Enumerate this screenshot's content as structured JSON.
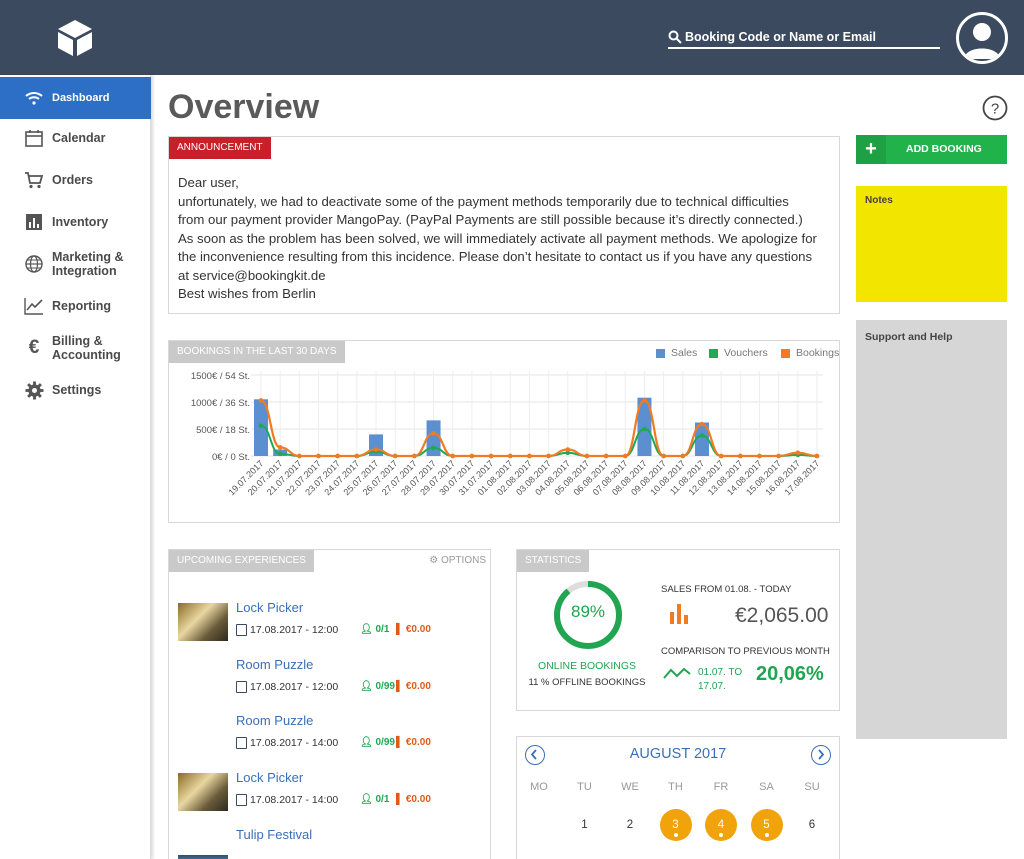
{
  "header": {
    "search_placeholder": "Booking Code or Name or Email"
  },
  "sidebar": {
    "items": [
      {
        "label": "Dashboard",
        "icon": "wifi-icon",
        "active": true
      },
      {
        "label": "Calendar",
        "icon": "calendar-icon"
      },
      {
        "label": "Orders",
        "icon": "cart-icon"
      },
      {
        "label": "Inventory",
        "icon": "bar-chart-icon"
      },
      {
        "label": "Marketing &",
        "label2": "Integration",
        "icon": "globe-icon"
      },
      {
        "label": "Reporting",
        "icon": "line-chart-icon"
      },
      {
        "label": "Billing &",
        "label2": "Accounting",
        "icon": "euro-icon"
      },
      {
        "label": "Settings",
        "icon": "gear-icon"
      }
    ]
  },
  "main": {
    "title": "Overview",
    "announcement": {
      "tag": "ANNOUNCEMENT",
      "lines": [
        "Dear user,",
        "unfortunately, we had to deactivate some of the payment methods temporarily due to technical difficulties",
        "from our payment provider MangoPay. (PayPal Payments are still possible because it’s directly connected.)",
        "As soon as the problem has been solved, we will immediately activate all payment methods. We apologize for",
        "the inconvenience resulting from this incidence. Please don’t hesitate to contact us if you have any questions",
        "at service@bookingkit.de",
        "Best wishes from Berlin"
      ]
    },
    "upcoming": {
      "tag": "UPCOMING EXPERIENCES",
      "options_label": "⚙ OPTIONS",
      "items": [
        {
          "name": "Lock Picker",
          "date": "17.08.2017 - 12:00",
          "persons": "0/1",
          "sales": "€0.00",
          "thumb": "lock"
        },
        {
          "name": "Room Puzzle",
          "date": "17.08.2017 - 12:00",
          "persons": "0/99",
          "sales": "€0.00",
          "thumb": ""
        },
        {
          "name": "Room Puzzle",
          "date": "17.08.2017 - 14:00",
          "persons": "0/99",
          "sales": "€0.00",
          "thumb": ""
        },
        {
          "name": "Lock Picker",
          "date": "17.08.2017 - 14:00",
          "persons": "0/1",
          "sales": "€0.00",
          "thumb": "lock"
        },
        {
          "name": "Tulip Festival",
          "date": "",
          "persons": "",
          "sales": "",
          "thumb": "tulip"
        }
      ]
    },
    "statistics": {
      "tag": "STATISTICS",
      "online_percent": 89,
      "online_percent_label": "89%",
      "online_label": "ONLINE BOOKINGS",
      "offline_label": "11 % OFFLINE BOOKINGS",
      "sales_label": "SALES FROM 01.08. - TODAY",
      "sales_value": "€2,065.00",
      "comparison_label": "COMPARISON TO PREVIOUS MONTH",
      "comparison_range_1": "01.07. TO",
      "comparison_range_2": "17.07.",
      "comparison_value": "20,06%"
    },
    "calendar": {
      "month": "AUGUST 2017",
      "weekdays": [
        "MO",
        "TU",
        "WE",
        "TH",
        "FR",
        "SA",
        "SU"
      ],
      "days": [
        {
          "d": "1",
          "col": 1,
          "busy": false
        },
        {
          "d": "2",
          "col": 2,
          "busy": false
        },
        {
          "d": "3",
          "col": 3,
          "busy": true
        },
        {
          "d": "4",
          "col": 4,
          "busy": true
        },
        {
          "d": "5",
          "col": 5,
          "busy": true
        },
        {
          "d": "6",
          "col": 6,
          "busy": false
        }
      ]
    }
  },
  "right": {
    "add_booking": "ADD BOOKING",
    "notes_label": "Notes",
    "support_label": "Support and Help"
  },
  "colors": {
    "sales": "#5b8fcf",
    "vouchers": "#1fa954",
    "bookings": "#f07b23"
  },
  "chart_data": {
    "type": "bar",
    "title": "BOOKINGS IN THE LAST 30 DAYS",
    "categories": [
      "19.07.2017",
      "20.07.2017",
      "21.07.2017",
      "22.07.2017",
      "23.07.2017",
      "24.07.2017",
      "25.07.2017",
      "26.07.2017",
      "27.07.2017",
      "28.07.2017",
      "29.07.2017",
      "30.07.2017",
      "31.07.2017",
      "01.08.2017",
      "02.08.2017",
      "03.08.2017",
      "04.08.2017",
      "05.08.2017",
      "06.08.2017",
      "07.08.2017",
      "08.08.2017",
      "09.08.2017",
      "10.08.2017",
      "11.08.2017",
      "12.08.2017",
      "13.08.2017",
      "14.08.2017",
      "15.08.2017",
      "16.08.2017",
      "17.08.2017"
    ],
    "ytick_labels": [
      "0€ / 0 St.",
      "500€ / 18 St.",
      "1000€ / 36 St.",
      "1500€ / 54 St."
    ],
    "ylim": [
      0,
      1500
    ],
    "series": [
      {
        "name": "Sales",
        "kind": "bar",
        "values": [
          1050,
          120,
          0,
          0,
          0,
          0,
          400,
          0,
          0,
          660,
          0,
          0,
          0,
          0,
          0,
          0,
          0,
          0,
          0,
          0,
          1080,
          0,
          0,
          620,
          0,
          0,
          0,
          0,
          0,
          0
        ]
      },
      {
        "name": "Vouchers",
        "kind": "line",
        "values": [
          560,
          40,
          0,
          0,
          0,
          0,
          80,
          0,
          0,
          150,
          0,
          0,
          0,
          0,
          0,
          0,
          60,
          0,
          0,
          0,
          500,
          0,
          0,
          380,
          0,
          0,
          0,
          0,
          20,
          0
        ]
      },
      {
        "name": "Bookings",
        "kind": "line",
        "values": [
          1030,
          160,
          0,
          0,
          0,
          0,
          120,
          0,
          0,
          420,
          0,
          0,
          0,
          0,
          0,
          0,
          120,
          0,
          0,
          0,
          1030,
          0,
          0,
          590,
          0,
          0,
          0,
          0,
          60,
          0
        ]
      }
    ],
    "legend_position": "top-right",
    "grid": true
  }
}
